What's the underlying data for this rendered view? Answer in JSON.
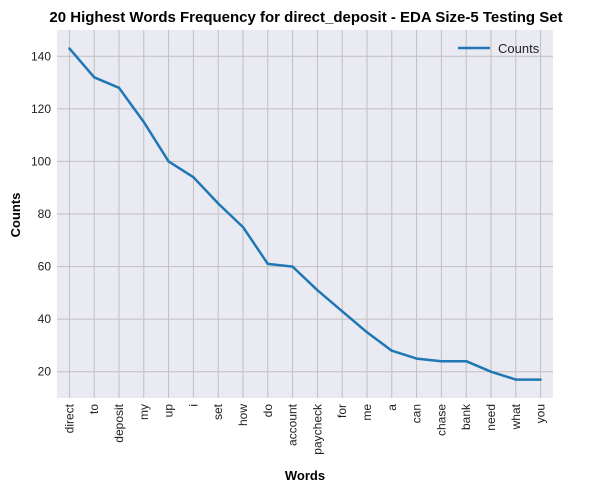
{
  "chart_data": {
    "type": "line",
    "title": "20 Highest Words Frequency for direct_deposit - EDA Size-5 Testing Set",
    "xlabel": "Words",
    "ylabel": "Counts",
    "categories": [
      "direct",
      "to",
      "deposit",
      "my",
      "up",
      "i",
      "set",
      "how",
      "do",
      "account",
      "paycheck",
      "for",
      "me",
      "a",
      "can",
      "chase",
      "bank",
      "need",
      "what",
      "you"
    ],
    "series": [
      {
        "name": "Counts",
        "values": [
          143,
          132,
          128,
          115,
          100,
          94,
          84,
          75,
          61,
          60,
          51,
          43,
          35,
          28,
          25,
          24,
          24,
          20,
          17,
          17
        ]
      }
    ],
    "ylim": [
      10,
      150
    ],
    "yticks": [
      20,
      40,
      60,
      80,
      100,
      120,
      140
    ],
    "grid": true,
    "legend_position": "top-right",
    "colors": {
      "line": "#1f77b4",
      "background": "#eaeaf2",
      "grid": "#c0c0c0"
    }
  }
}
